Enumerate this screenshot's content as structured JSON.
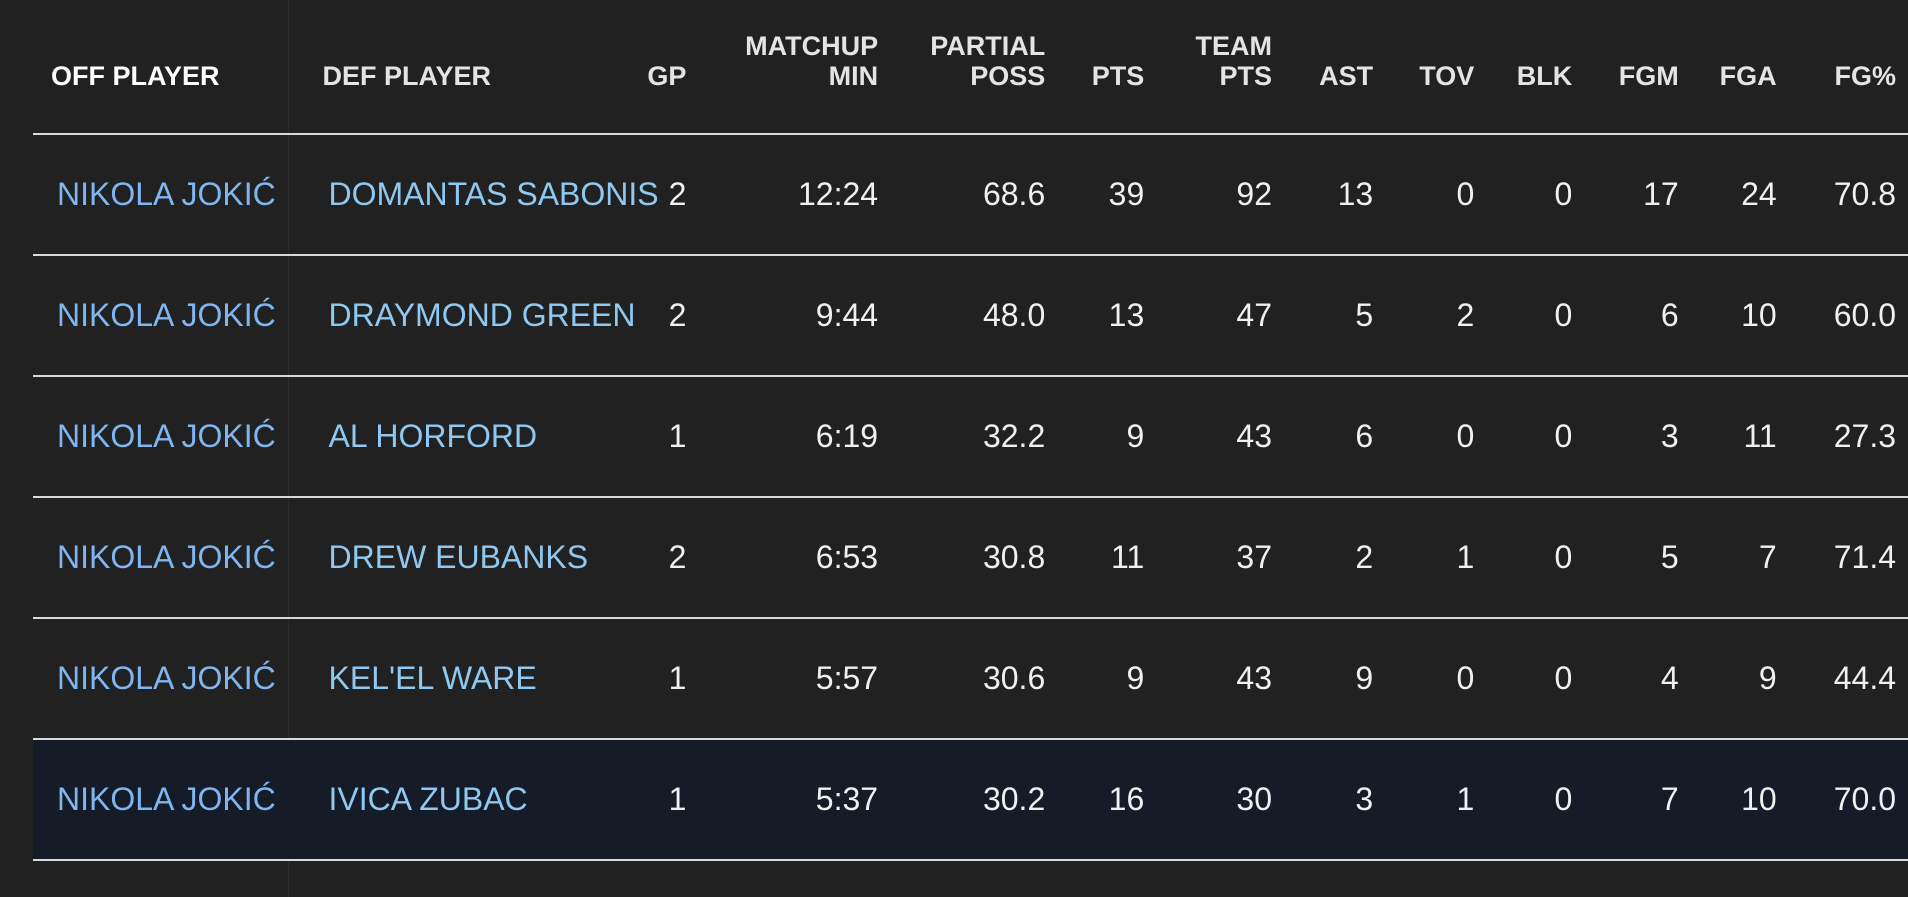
{
  "columns": {
    "off_player": "OFF PLAYER",
    "def_player": "DEF PLAYER",
    "gp": "GP",
    "matchup_min_1": "MATCHUP",
    "matchup_min_2": "MIN",
    "partial_poss_1": "PARTIAL",
    "partial_poss_2": "POSS",
    "pts": "PTS",
    "team_pts_1": "TEAM",
    "team_pts_2": "PTS",
    "ast": "AST",
    "tov": "TOV",
    "blk": "BLK",
    "fgm": "FGM",
    "fga": "FGA",
    "fg_pct": "FG%"
  },
  "rows": [
    {
      "off": "NIKOLA JOKIĆ",
      "def": "DOMANTAS SABONIS",
      "gp": "2",
      "min": "12:24",
      "poss": "68.6",
      "pts": "39",
      "team_pts": "92",
      "ast": "13",
      "tov": "0",
      "blk": "0",
      "fgm": "17",
      "fga": "24",
      "fg_pct": "70.8"
    },
    {
      "off": "NIKOLA JOKIĆ",
      "def": "DRAYMOND GREEN",
      "gp": "2",
      "min": "9:44",
      "poss": "48.0",
      "pts": "13",
      "team_pts": "47",
      "ast": "5",
      "tov": "2",
      "blk": "0",
      "fgm": "6",
      "fga": "10",
      "fg_pct": "60.0"
    },
    {
      "off": "NIKOLA JOKIĆ",
      "def": "AL HORFORD",
      "gp": "1",
      "min": "6:19",
      "poss": "32.2",
      "pts": "9",
      "team_pts": "43",
      "ast": "6",
      "tov": "0",
      "blk": "0",
      "fgm": "3",
      "fga": "11",
      "fg_pct": "27.3"
    },
    {
      "off": "NIKOLA JOKIĆ",
      "def": "DREW EUBANKS",
      "gp": "2",
      "min": "6:53",
      "poss": "30.8",
      "pts": "11",
      "team_pts": "37",
      "ast": "2",
      "tov": "1",
      "blk": "0",
      "fgm": "5",
      "fga": "7",
      "fg_pct": "71.4"
    },
    {
      "off": "NIKOLA JOKIĆ",
      "def": "KEL'EL WARE",
      "gp": "1",
      "min": "5:57",
      "poss": "30.6",
      "pts": "9",
      "team_pts": "43",
      "ast": "9",
      "tov": "0",
      "blk": "0",
      "fgm": "4",
      "fga": "9",
      "fg_pct": "44.4"
    },
    {
      "off": "NIKOLA JOKIĆ",
      "def": "IVICA ZUBAC",
      "gp": "1",
      "min": "5:37",
      "poss": "30.2",
      "pts": "16",
      "team_pts": "30",
      "ast": "3",
      "tov": "1",
      "blk": "0",
      "fgm": "7",
      "fga": "10",
      "fg_pct": "70.0",
      "highlighted": true
    }
  ],
  "colors": {
    "background": "#212121",
    "off_link": "#7fb5f0",
    "def_link": "#8fc8f0",
    "row_highlight": "#161c27",
    "divider": "#d9d9d9"
  }
}
